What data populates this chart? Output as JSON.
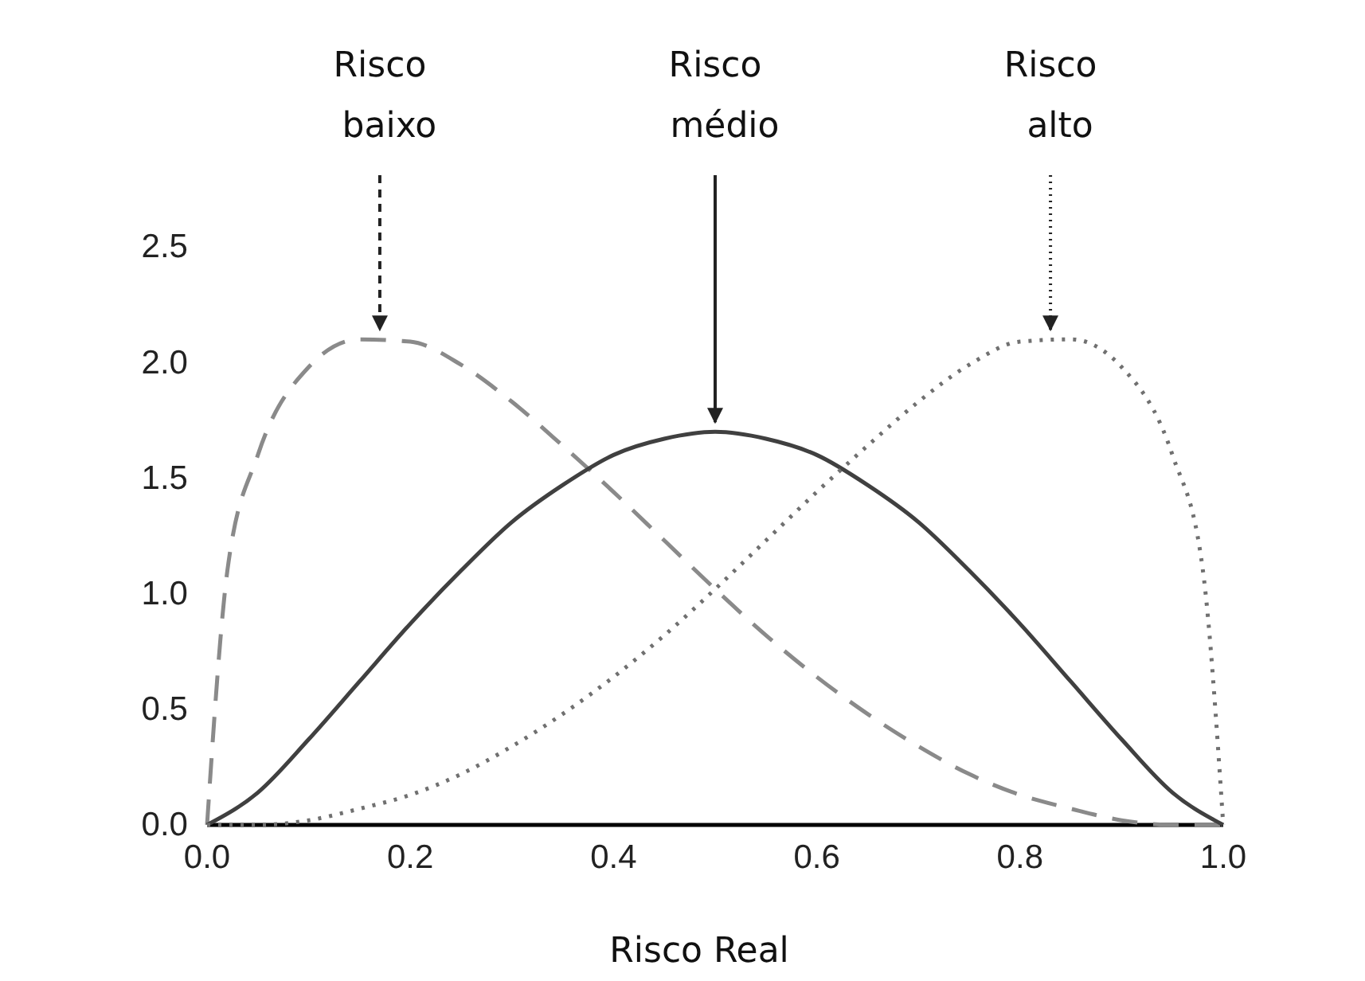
{
  "chart_data": {
    "type": "line",
    "xlabel": "Risco Real",
    "xlim": [
      0,
      1
    ],
    "ylim": [
      0,
      2.5
    ],
    "xticks": [
      {
        "value": 0,
        "label": "0.0"
      },
      0.2,
      0.4,
      0.6,
      0.8,
      {
        "value": 1,
        "label": "1.0"
      }
    ],
    "yticks": [
      {
        "value": 0,
        "label": "0.0"
      },
      0.5,
      {
        "value": 1,
        "label": "1.0"
      },
      1.5,
      {
        "value": 2,
        "label": "2.0"
      },
      2.5
    ],
    "grid": false,
    "marker": "none",
    "series": [
      {
        "color": "#8a8a8a",
        "line_style": "dashed",
        "x": [
          0,
          0.02,
          0.05,
          0.1,
          0.15,
          0.2,
          0.25,
          0.3,
          0.35,
          0.4,
          0.45,
          0.5,
          0.55,
          0.6,
          0.65,
          0.7,
          0.75,
          0.8,
          0.85,
          0.9,
          0.95,
          1
        ],
        "values": [
          0,
          1.1,
          1.6,
          1.98,
          2.1,
          2.09,
          1.99,
          1.83,
          1.64,
          1.44,
          1.23,
          1.02,
          0.82,
          0.64,
          0.48,
          0.34,
          0.22,
          0.13,
          0.07,
          0.02,
          0,
          0
        ]
      },
      {
        "color": "#404040",
        "line_style": "solid",
        "x": [
          0,
          0.05,
          0.1,
          0.15,
          0.2,
          0.25,
          0.3,
          0.35,
          0.4,
          0.45,
          0.5,
          0.55,
          0.6,
          0.65,
          0.7,
          0.75,
          0.8,
          0.85,
          0.9,
          0.95,
          1
        ],
        "values": [
          0,
          0.14,
          0.37,
          0.62,
          0.87,
          1.1,
          1.31,
          1.47,
          1.6,
          1.67,
          1.7,
          1.67,
          1.6,
          1.47,
          1.31,
          1.1,
          0.87,
          0.62,
          0.37,
          0.14,
          0
        ]
      },
      {
        "color": "#707070",
        "line_style": "dotted",
        "x": [
          0,
          0.05,
          0.1,
          0.15,
          0.2,
          0.25,
          0.3,
          0.35,
          0.4,
          0.45,
          0.5,
          0.55,
          0.6,
          0.65,
          0.7,
          0.75,
          0.8,
          0.85,
          0.9,
          0.95,
          0.98,
          1
        ],
        "values": [
          0,
          0,
          0.02,
          0.07,
          0.13,
          0.22,
          0.34,
          0.48,
          0.64,
          0.82,
          1.02,
          1.23,
          1.44,
          1.64,
          1.83,
          1.99,
          2.09,
          2.1,
          1.98,
          1.6,
          1.1,
          0
        ]
      }
    ],
    "annotations": [
      {
        "text": "Risco baixo",
        "x": 0.17,
        "y": 2.1
      },
      {
        "text": "Risco médio",
        "x": 0.5,
        "y": 1.7
      },
      {
        "text": "Risco alto",
        "x": 0.83,
        "y": 2.1
      }
    ]
  }
}
